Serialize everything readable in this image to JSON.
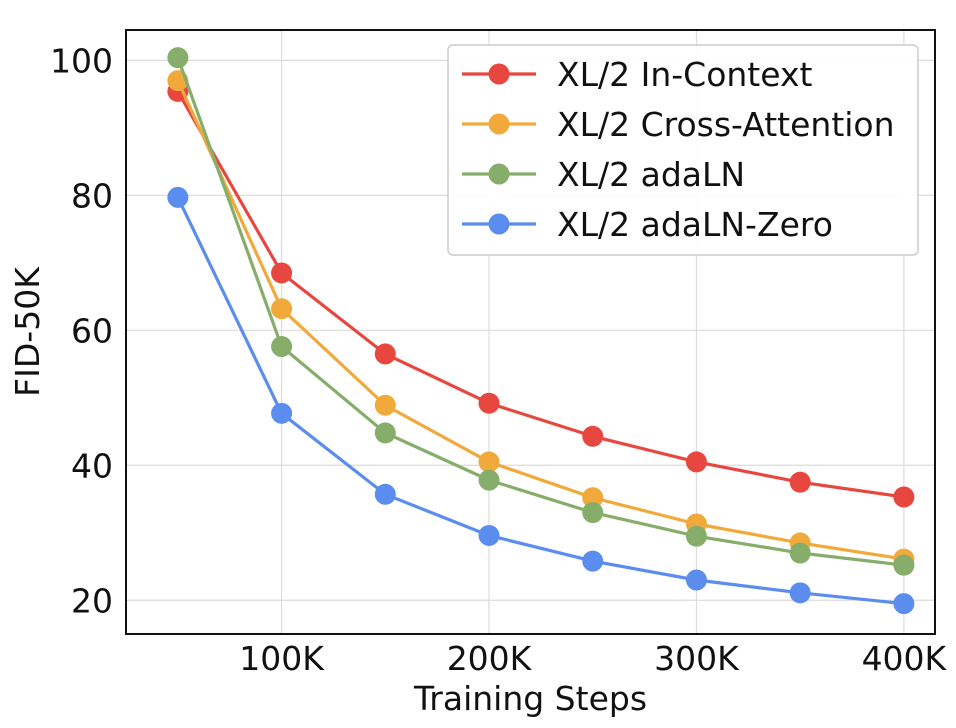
{
  "chart_data": {
    "type": "line",
    "title": "",
    "xlabel": "Training Steps",
    "ylabel": "FID-50K",
    "x": [
      50000,
      100000,
      150000,
      200000,
      250000,
      300000,
      350000,
      400000
    ],
    "xlim": [
      25000,
      415000
    ],
    "ylim": [
      15,
      104.5
    ],
    "x_ticks": [
      100000,
      200000,
      300000,
      400000
    ],
    "x_tick_labels": [
      "100K",
      "200K",
      "300K",
      "400K"
    ],
    "y_ticks": [
      20,
      40,
      60,
      80,
      100
    ],
    "y_tick_labels": [
      "20",
      "40",
      "60",
      "80",
      "100"
    ],
    "grid": true,
    "legend_position": "top-right",
    "series": [
      {
        "name": "XL/2 In-Context",
        "color": "#E8473F",
        "values": [
          95.4,
          68.5,
          56.5,
          49.2,
          44.3,
          40.5,
          37.5,
          35.3
        ]
      },
      {
        "name": "XL/2 Cross-Attention",
        "color": "#F2A93B",
        "values": [
          97.0,
          63.2,
          48.9,
          40.5,
          35.2,
          31.3,
          28.5,
          26.1
        ]
      },
      {
        "name": "XL/2 adaLN",
        "color": "#86AD6A",
        "values": [
          100.4,
          57.6,
          44.8,
          37.8,
          33.0,
          29.5,
          27.0,
          25.2
        ]
      },
      {
        "name": "XL/2 adaLN-Zero",
        "color": "#5B8DEE",
        "values": [
          79.7,
          47.7,
          35.7,
          29.6,
          25.8,
          23.0,
          21.1,
          19.5
        ]
      }
    ]
  }
}
